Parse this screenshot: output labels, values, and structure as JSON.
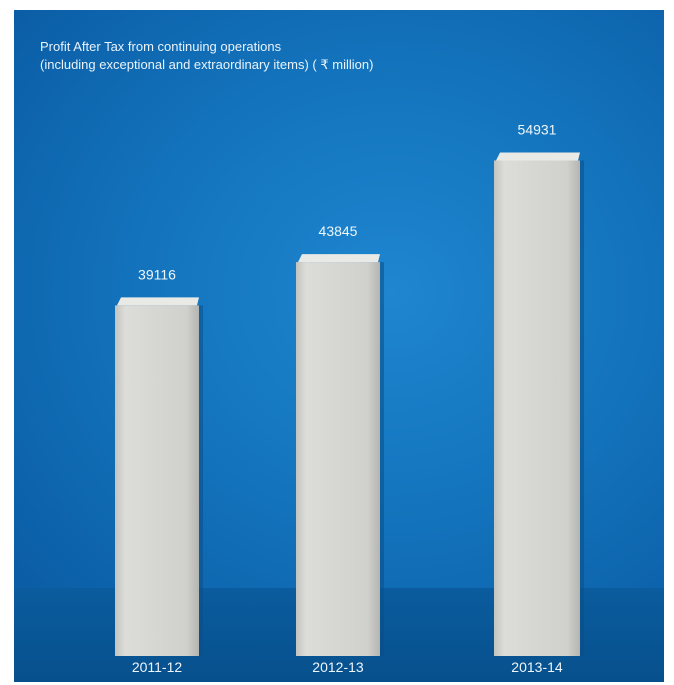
{
  "chart_data": {
    "type": "bar",
    "title": "Profit After Tax from continuing operations",
    "subtitle": "(including exceptional and extraordinary items) ( ₹ million)",
    "categories": [
      "2011-12",
      "2012-13",
      "2013-14"
    ],
    "values": [
      39116,
      43845,
      54931
    ],
    "ylim": [
      0,
      60000
    ],
    "grid": false,
    "xlabel": "",
    "ylabel": ""
  },
  "colors": {
    "background": "#1476bf",
    "bar_face": "#d2d2ce",
    "bar_top": "#e9e9e5",
    "text": "#eef6fc"
  }
}
